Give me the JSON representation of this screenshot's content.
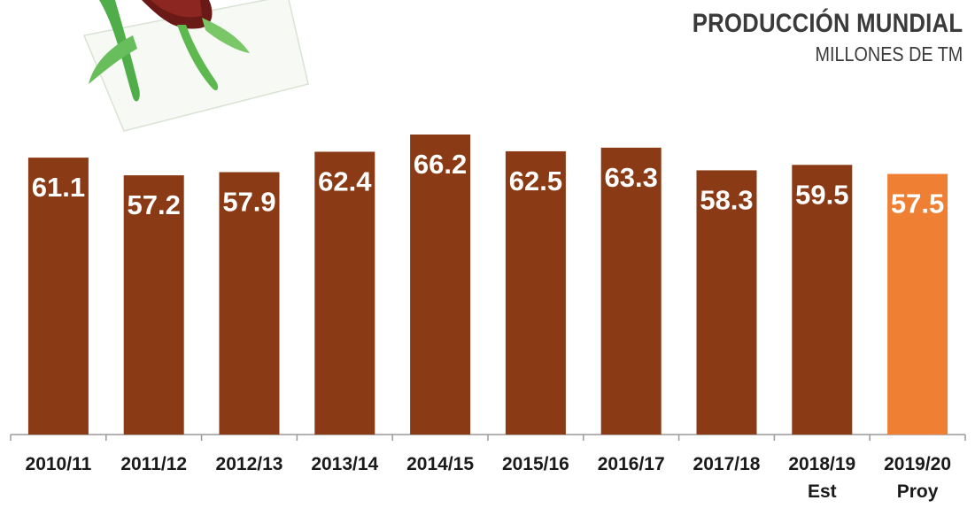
{
  "chart_data": {
    "type": "bar",
    "title": "PRODUCCIÓN MUNDIAL",
    "subtitle": "MILLONES DE TM",
    "categories": [
      [
        "2010/11"
      ],
      [
        "2011/12"
      ],
      [
        "2012/13"
      ],
      [
        "2013/14"
      ],
      [
        "2014/15"
      ],
      [
        "2015/16"
      ],
      [
        "2016/17"
      ],
      [
        "2017/18"
      ],
      [
        "2018/19",
        "Est"
      ],
      [
        "2019/20",
        "Proy"
      ]
    ],
    "values": [
      61.1,
      57.2,
      57.9,
      62.4,
      66.2,
      62.5,
      63.3,
      58.3,
      59.5,
      57.5
    ],
    "value_labels": [
      "61.1",
      "57.2",
      "57.9",
      "62.4",
      "66.2",
      "62.5",
      "63.3",
      "58.3",
      "59.5",
      "57.5"
    ],
    "colors": {
      "bar": "#8a3a14",
      "highlight_bar": "#ee7f33",
      "value_text": "#ffffff",
      "axis": "#9a9a9a",
      "tick_text": "#1a1a1a"
    },
    "highlight_index": 9,
    "xlabel": "",
    "ylabel": "",
    "ylim": [
      0,
      66.2
    ],
    "grid": false,
    "legend": "none",
    "decoration": "rose-icon"
  }
}
